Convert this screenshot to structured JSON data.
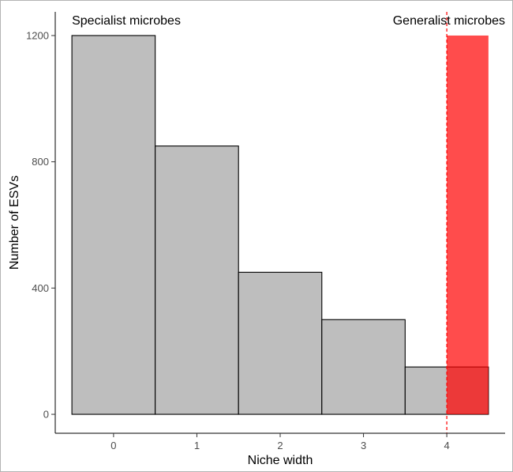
{
  "chart_data": {
    "type": "bar",
    "title": "",
    "xlabel": "Niche width",
    "ylabel": "Number of ESVs",
    "x": [
      0,
      1,
      2,
      3,
      4
    ],
    "values": [
      1200,
      850,
      450,
      300,
      150
    ],
    "bin_width": 1,
    "xticks": [
      0,
      1,
      2,
      3,
      4
    ],
    "yticks": [
      0,
      400,
      800,
      1200
    ],
    "xlim": [
      -0.7,
      4.7
    ],
    "ylim": [
      -60,
      1275
    ],
    "grid": false,
    "bar_fill": "#bebebe",
    "bar_stroke": "#000000",
    "threshold": {
      "x": 4.0,
      "color": "#ff0000",
      "style": "dashed"
    },
    "highlight": {
      "x_start": 4.0,
      "x_end": 4.5,
      "y_max": 1200,
      "color": "#ff0000",
      "opacity": 0.7
    },
    "annotations": [
      {
        "text": "Specialist microbes",
        "x": -0.5,
        "y": 1265,
        "anchor": "start"
      },
      {
        "text": "Generalist microbes",
        "x": 4.7,
        "y": 1265,
        "anchor": "end"
      }
    ]
  }
}
